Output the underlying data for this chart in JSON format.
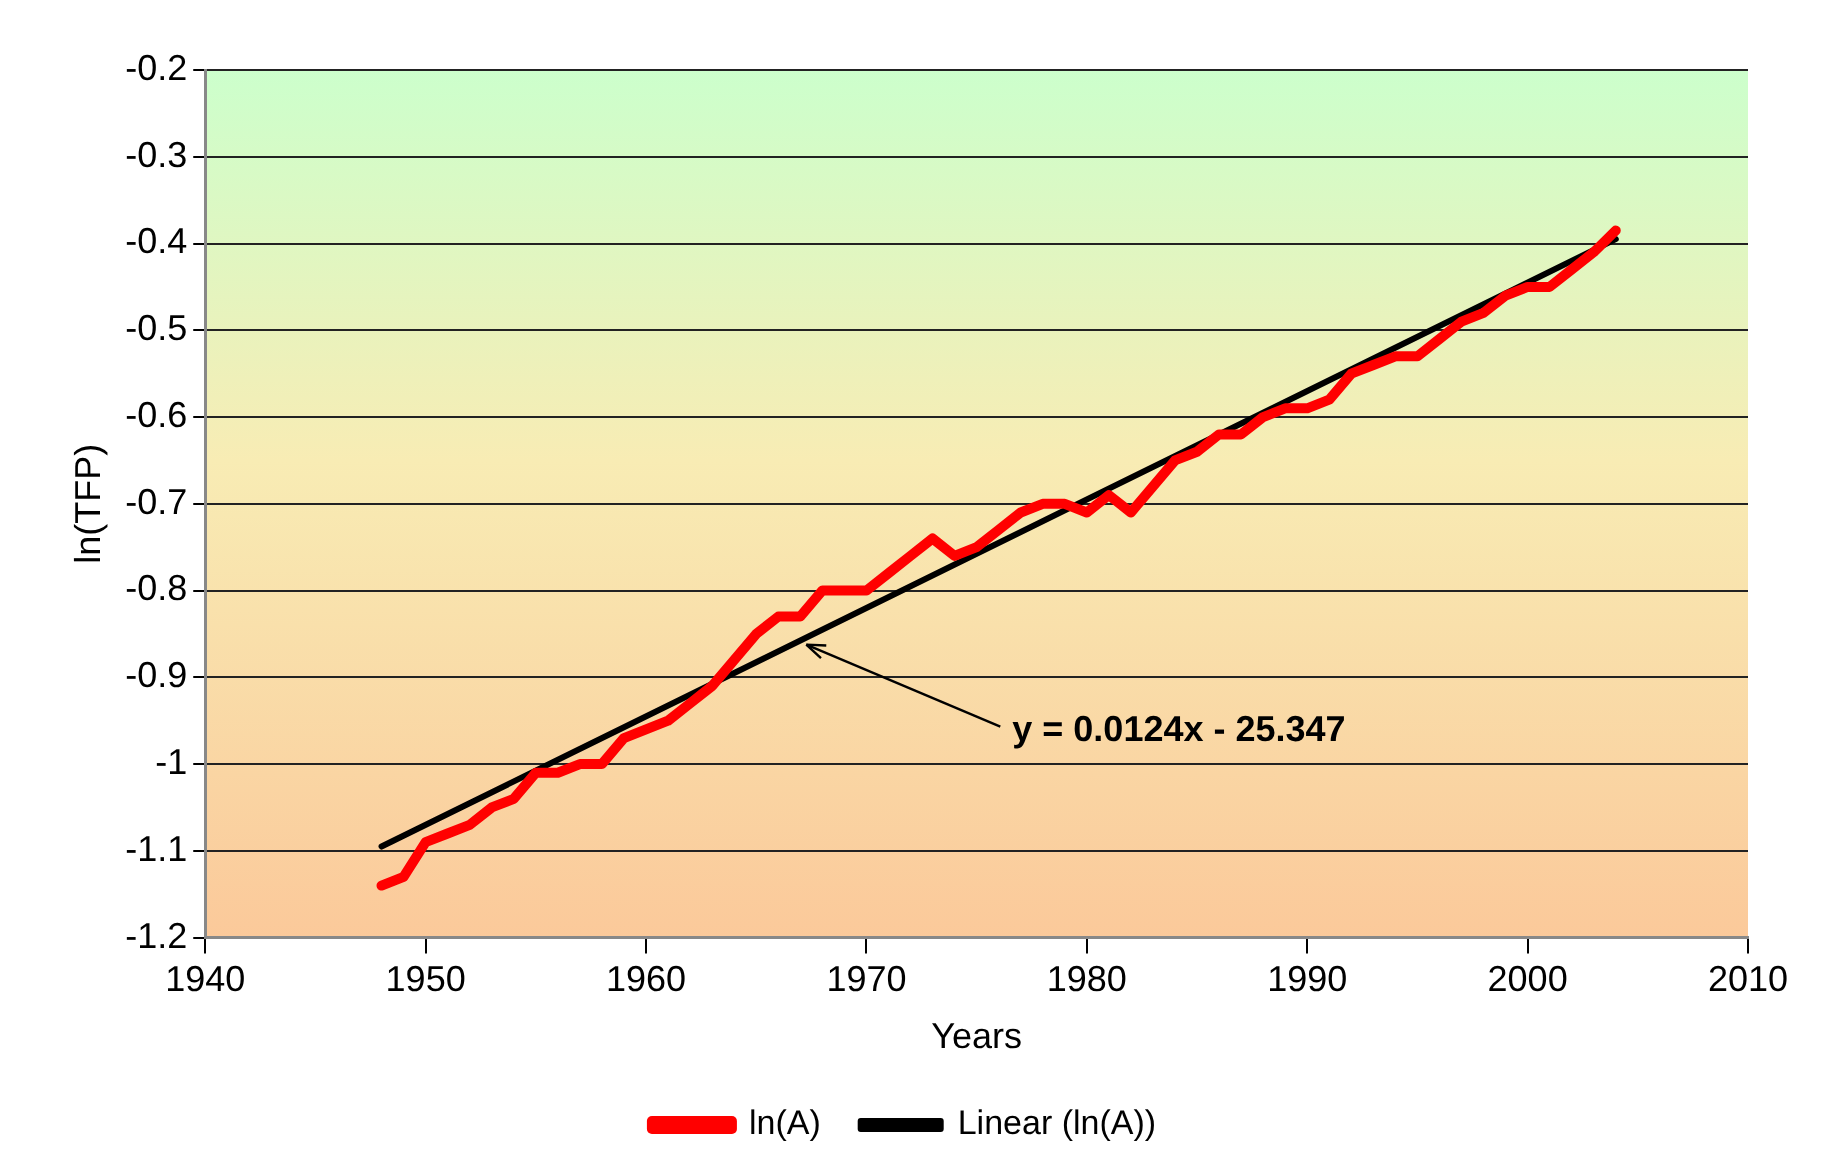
{
  "chart_data": {
    "type": "line",
    "xlabel": "Years",
    "ylabel": "ln(TFP)",
    "xlim": [
      1940,
      2010
    ],
    "xticks": [
      1940,
      1950,
      1960,
      1970,
      1980,
      1990,
      2000,
      2010
    ],
    "ylim": [
      -1.2,
      -0.2
    ],
    "yticks": [
      -1.2,
      -1.1,
      -1,
      -0.9,
      -0.8,
      -0.7,
      -0.6,
      -0.5,
      -0.4,
      -0.3,
      -0.2
    ],
    "grid": "y",
    "legend": "bottom",
    "marker": "none",
    "series": [
      {
        "name": "ln(A)",
        "color": "#ff0000",
        "x": [
          1948,
          1949,
          1950,
          1951,
          1952,
          1953,
          1954,
          1955,
          1956,
          1957,
          1958,
          1959,
          1960,
          1961,
          1962,
          1963,
          1964,
          1965,
          1966,
          1967,
          1968,
          1969,
          1970,
          1971,
          1972,
          1973,
          1974,
          1975,
          1976,
          1977,
          1978,
          1979,
          1980,
          1981,
          1982,
          1983,
          1984,
          1985,
          1986,
          1987,
          1988,
          1989,
          1990,
          1991,
          1992,
          1993,
          1994,
          1995,
          1996,
          1997,
          1998,
          1999,
          2000,
          2001,
          2002,
          2003,
          2004
        ],
        "values": [
          -1.14,
          -1.13,
          -1.09,
          -1.08,
          -1.07,
          -1.05,
          -1.04,
          -1.01,
          -1.01,
          -1.0,
          -1.0,
          -0.97,
          -0.96,
          -0.95,
          -0.93,
          -0.91,
          -0.88,
          -0.85,
          -0.83,
          -0.83,
          -0.8,
          -0.8,
          -0.8,
          -0.78,
          -0.76,
          -0.74,
          -0.76,
          -0.75,
          -0.73,
          -0.71,
          -0.7,
          -0.7,
          -0.71,
          -0.69,
          -0.71,
          -0.68,
          -0.65,
          -0.64,
          -0.62,
          -0.62,
          -0.6,
          -0.59,
          -0.59,
          -0.58,
          -0.55,
          -0.54,
          -0.53,
          -0.53,
          -0.51,
          -0.49,
          -0.48,
          -0.46,
          -0.45,
          -0.45,
          -0.43,
          -0.41,
          -0.385
        ]
      },
      {
        "name": "Linear (ln(A))",
        "type": "line",
        "color": "#000000",
        "x": [
          1948,
          2004
        ],
        "values": [
          -1.095,
          -0.395
        ]
      }
    ],
    "annotations": [
      {
        "text": "y = 0.0124x - 25.347",
        "x": 1967,
        "y": -0.86
      }
    ]
  }
}
